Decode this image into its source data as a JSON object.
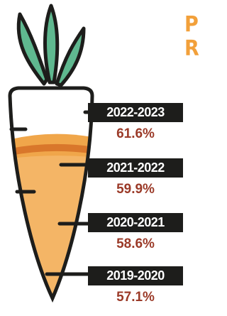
{
  "heading_fragments": [
    "P",
    "R"
  ],
  "items": [
    {
      "period": "2022-2023",
      "rate": "61.6%"
    },
    {
      "period": "2021-2022",
      "rate": "59.9%"
    },
    {
      "period": "2020-2021",
      "rate": "58.6%"
    },
    {
      "period": "2019-2020",
      "rate": "57.1%"
    }
  ]
}
